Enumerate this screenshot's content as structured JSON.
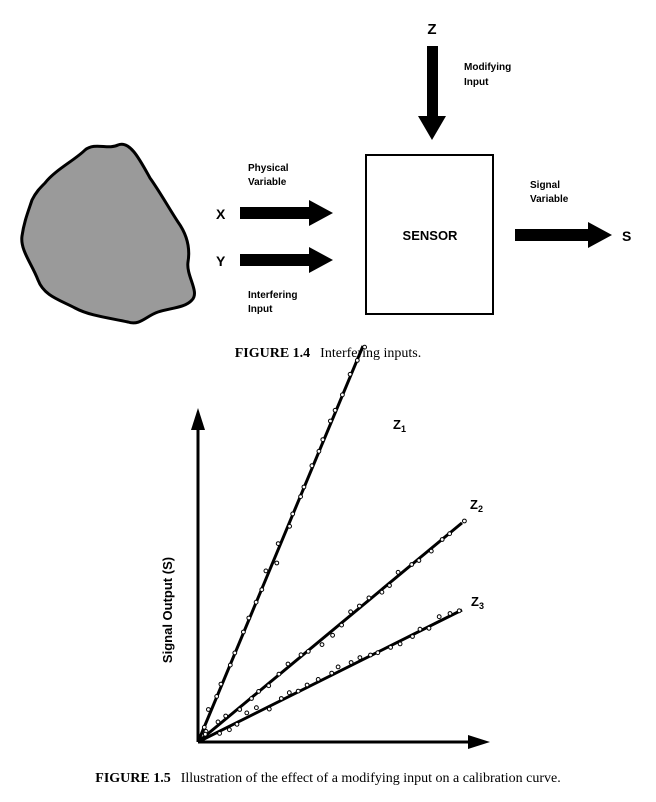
{
  "figure1": {
    "z_label": "Z",
    "modifying_line1": "Modifying",
    "modifying_line2": "Input",
    "physical_line1": "Physical",
    "physical_line2": "Variable",
    "x_label": "X",
    "y_label": "Y",
    "interfering_line1": "Interfering",
    "interfering_line2": "Input",
    "sensor_label": "SENSOR",
    "signal_line1": "Signal",
    "signal_line2": "Variable",
    "s_label": "S",
    "caption_number": "FIGURE 1.4",
    "caption_text": "Interfering inputs.",
    "source_color": "#9a9a9a"
  },
  "figure2": {
    "ylabel": "Signal Output (S)",
    "caption_number": "FIGURE 1.5",
    "caption_text": "Illustration of the effect of a modifying input on a calibration curve.",
    "line_labels": [
      {
        "name": "Z",
        "sub": "1"
      },
      {
        "name": "Z",
        "sub": "2"
      },
      {
        "name": "Z",
        "sub": "3"
      }
    ]
  },
  "chart_data": {
    "type": "scatter",
    "ylabel": "Signal Output (S)",
    "xlabel": "",
    "ticks": false,
    "series": [
      {
        "name": "Z1",
        "slope": 2.4,
        "x_max": 1.0
      },
      {
        "name": "Z2",
        "slope": 0.83,
        "x_max": 1.6
      },
      {
        "name": "Z3",
        "slope": 0.5,
        "x_max": 1.6
      }
    ]
  }
}
